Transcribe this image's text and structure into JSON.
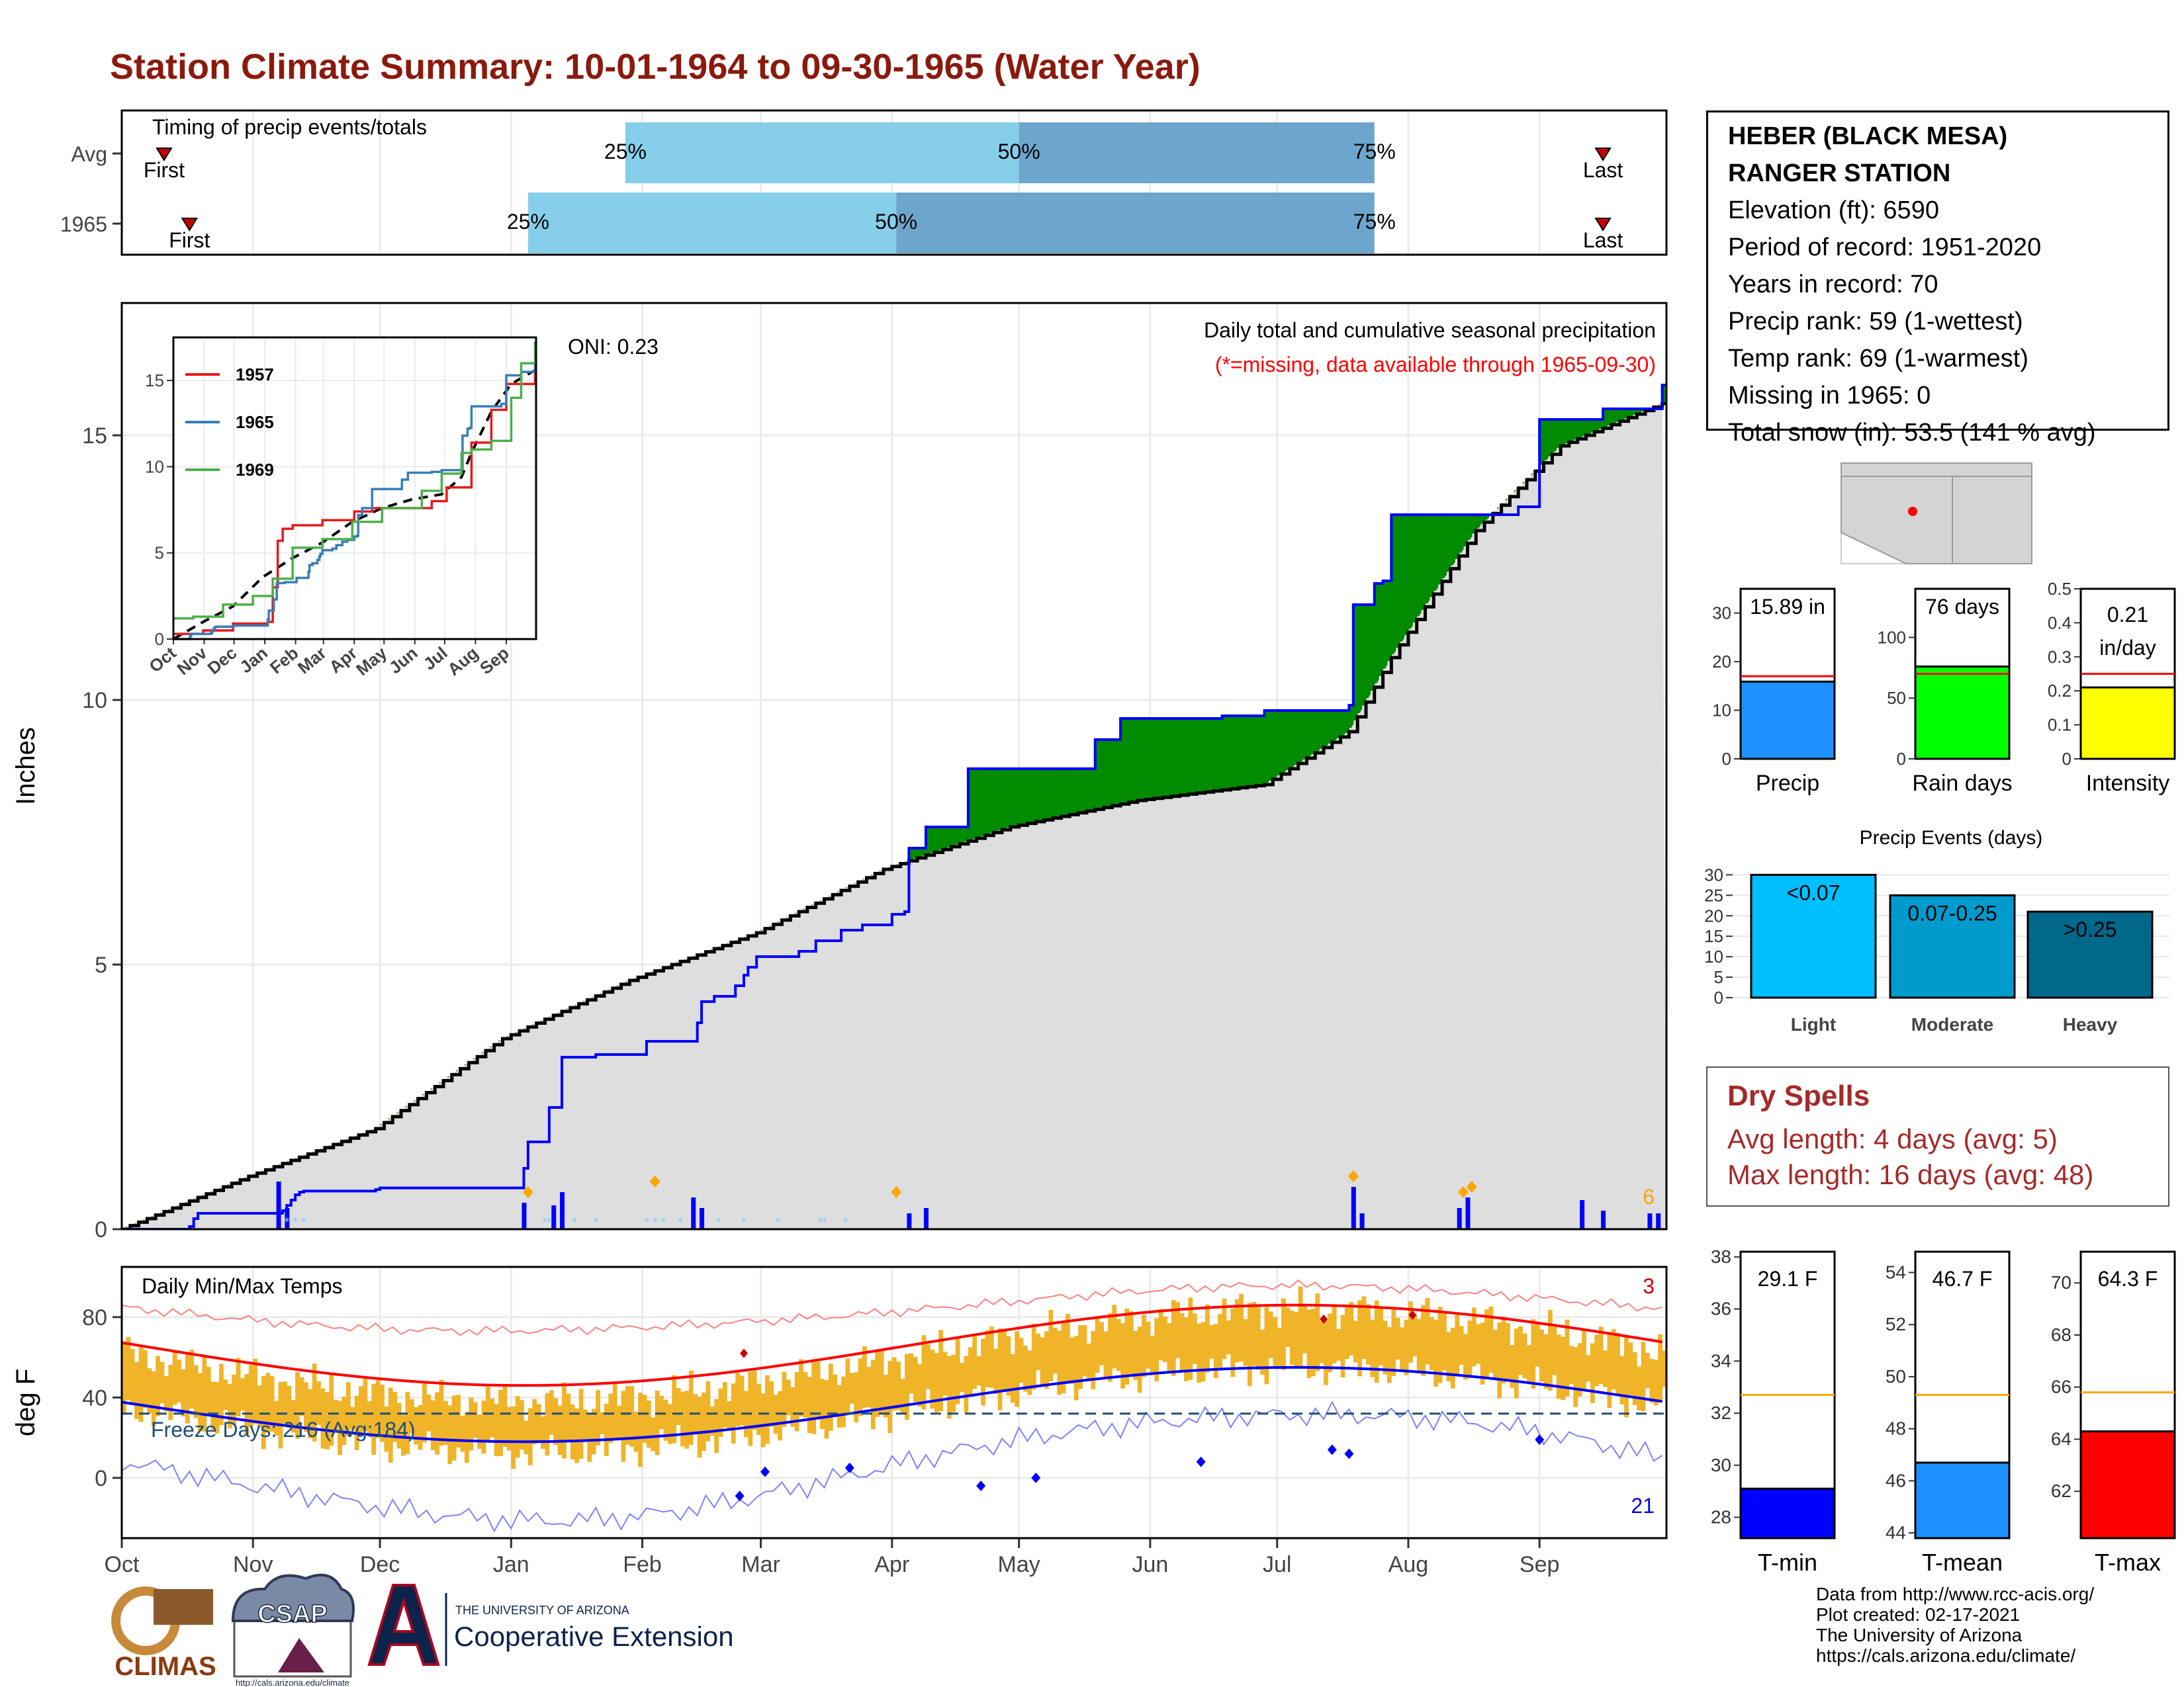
{
  "title": "Station Climate Summary: 10-01-1964 to 09-30-1965 (Water Year)",
  "colors": {
    "title": "#8b1a0e",
    "light_blue": "#87ceeb",
    "mid_blue": "#6ca6cd",
    "green": "#008b00",
    "brown": "#8b5a00",
    "normal_fill": "#dedede",
    "bar_blue": "#0000ff",
    "snow_blue": "#87cefa",
    "orange": "#ffa500",
    "temp_bar": "#f0b429",
    "red": "#ff0000",
    "blue": "#0000ff",
    "dry_red": "#a52a2a"
  },
  "timing": {
    "label": "Timing of precip events/totals",
    "rows": [
      {
        "name": "Avg",
        "first_day": 10,
        "p25": 119,
        "p50": 212,
        "p75": 296,
        "last_day": 350,
        "first_label": "First",
        "last_label": "Last",
        "p25_label": "25%",
        "p50_label": "50%",
        "p75_label": "75%"
      },
      {
        "name": "1965",
        "first_day": 16,
        "p25": 96,
        "p50": 183,
        "p75": 296,
        "last_day": 350,
        "first_label": "First",
        "last_label": "Last",
        "p25_label": "25%",
        "p50_label": "50%",
        "p75_label": "75%"
      }
    ]
  },
  "month_axis": {
    "labels": [
      "Oct",
      "Nov",
      "Dec",
      "Jan",
      "Feb",
      "Mar",
      "Apr",
      "May",
      "Jun",
      "Jul",
      "Aug",
      "Sep"
    ],
    "days": [
      0,
      31,
      61,
      92,
      123,
      151,
      182,
      212,
      243,
      273,
      304,
      335
    ],
    "ndays": 365
  },
  "precip": {
    "ylabel": "Inches",
    "yticks": [
      0,
      5,
      10,
      15
    ],
    "ylim": [
      0,
      17.5
    ],
    "oni": "ONI: 0.23",
    "heading": "Daily total and cumulative seasonal precipitation",
    "missing_note": "(*=missing, data available through 1965-09-30)",
    "corner_count": "6"
  },
  "inset": {
    "legend": [
      "1957",
      "1965",
      "1969"
    ],
    "colors": [
      "#e41a1c",
      "#377eb8",
      "#4daf4a"
    ],
    "yticks": [
      0,
      5,
      10,
      15
    ],
    "xlabels": [
      "Oct",
      "Nov",
      "Dec",
      "Jan",
      "Feb",
      "Mar",
      "Apr",
      "May",
      "Jun",
      "Jul",
      "Aug",
      "Sep"
    ]
  },
  "temps": {
    "ylabel": "deg F",
    "title": "Daily Min/Max Temps",
    "yticks": [
      0,
      40,
      80
    ],
    "ylim": [
      -30,
      105
    ],
    "freeze_label": "Freeze Days: 216 (Avg:184)",
    "corner_top": "3",
    "corner_bottom": "21"
  },
  "station": {
    "lines": [
      "HEBER (BLACK MESA)",
      "RANGER STATION",
      "Elevation (ft): 6590",
      "Period of record: 1951-2020",
      "Years in record: 70",
      "Precip rank: 59 (1-wettest)",
      "Temp rank: 69 (1-warmest)",
      "Missing in 1965: 0",
      "Total snow (in): 53.5 (141 % avg)"
    ]
  },
  "mini_bars": [
    {
      "label": "Precip",
      "value_text": "15.89 in",
      "value": 15.89,
      "avg": 17.0,
      "ymax": 35,
      "yticks": [
        0,
        10,
        20,
        30
      ],
      "color": "#1e90ff"
    },
    {
      "label": "Rain days",
      "value_text": "76 days",
      "value": 76,
      "avg": 70,
      "ymax": 140,
      "yticks": [
        0,
        50,
        100
      ],
      "color": "#00ff00"
    },
    {
      "label": "Intensity",
      "value_text": "0.21 in/day",
      "value": 0.21,
      "avg": 0.25,
      "ymax": 0.5,
      "yticks": [
        0.0,
        0.1,
        0.2,
        0.3,
        0.4,
        0.5
      ],
      "color": "#ffff00"
    }
  ],
  "precip_events": {
    "title": "Precip Events (days)",
    "categories": [
      "Light",
      "Moderate",
      "Heavy"
    ],
    "range_labels": [
      "<0.07",
      "0.07-0.25",
      ">0.25"
    ],
    "values": [
      30,
      25,
      21
    ],
    "yticks": [
      0,
      5,
      10,
      15,
      20,
      25,
      30
    ],
    "ymax": 32,
    "colors": [
      "#00bfff",
      "#009acd",
      "#00688b"
    ]
  },
  "dry_spells": {
    "title": "Dry Spells",
    "avg_line": "Avg length: 4 days (avg: 5)",
    "max_line": "Max length: 16 days (avg: 48)"
  },
  "temp_bars": [
    {
      "label": "T-min",
      "value_text": "29.1 F",
      "value": 29.1,
      "avg": 32.7,
      "ymin": 27.2,
      "ymax": 38.2,
      "yticks": [
        28,
        30,
        32,
        34,
        36,
        38
      ],
      "color": "#0000ff"
    },
    {
      "label": "T-mean",
      "value_text": "46.7 F",
      "value": 46.7,
      "avg": 49.3,
      "ymin": 43.8,
      "ymax": 54.8,
      "yticks": [
        44,
        46,
        48,
        50,
        52,
        54
      ],
      "color": "#1e90ff"
    },
    {
      "label": "T-max",
      "value_text": "64.3 F",
      "value": 64.3,
      "avg": 65.8,
      "ymin": 60.2,
      "ymax": 71.2,
      "yticks": [
        62,
        64,
        66,
        68,
        70
      ],
      "color": "#ff0000"
    }
  ],
  "credits": [
    "Data from http://www.rcc-acis.org/",
    "Plot created: 02-17-2021",
    "The University of Arizona",
    "https://cals.arizona.edu/climate/"
  ],
  "logos": {
    "climas": "CLIMAS",
    "csap": "CSAP",
    "csap_url": "http://cals.arizona.edu/climate",
    "ua_small": "THE UNIVERSITY OF ARIZONA",
    "ua_big": "Cooperative Extension"
  },
  "chart_data": {
    "type": "area",
    "title": "Daily total and cumulative seasonal precipitation",
    "xlabel": "",
    "ylabel": "Inches",
    "ylim": [
      0,
      17.5
    ],
    "x_unit": "day of water year",
    "series": [
      {
        "name": "cumulative_1965",
        "x": [
          0,
          16,
          17,
          18,
          38,
          39,
          40,
          41,
          42,
          43,
          60,
          61,
          95,
          96,
          100,
          101,
          104,
          105,
          112,
          123,
          124,
          135,
          136,
          137,
          140,
          145,
          147,
          148,
          150,
          160,
          164,
          170,
          175,
          182,
          185,
          186,
          190,
          200,
          230,
          236,
          260,
          270,
          290,
          291,
          296,
          298,
          300,
          330,
          335,
          350,
          364
        ],
        "values": [
          0,
          0.05,
          0.2,
          0.3,
          0.35,
          0.45,
          0.55,
          0.65,
          0.7,
          0.72,
          0.75,
          0.78,
          1.15,
          1.65,
          1.65,
          2.3,
          3.25,
          3.25,
          3.3,
          3.3,
          3.55,
          3.55,
          3.9,
          4.3,
          4.4,
          4.6,
          4.8,
          4.95,
          5.15,
          5.25,
          5.45,
          5.65,
          5.75,
          5.95,
          6.0,
          7.2,
          7.6,
          8.7,
          9.25,
          9.65,
          9.7,
          9.8,
          9.9,
          11.8,
          12.2,
          12.25,
          13.5,
          13.65,
          15.3,
          15.5,
          15.95
        ]
      },
      {
        "name": "cumulative_average",
        "x": [
          0,
          30,
          60,
          90,
          120,
          150,
          180,
          210,
          240,
          270,
          290,
          300,
          320,
          340,
          364
        ],
        "values": [
          0,
          1.0,
          1.9,
          3.6,
          4.7,
          5.6,
          6.8,
          7.6,
          8.1,
          8.4,
          9.4,
          10.8,
          13.2,
          14.8,
          15.6
        ]
      }
    ],
    "daily_totals": [
      {
        "x": 37,
        "value": 0.9
      },
      {
        "x": 39,
        "value": 0.4
      },
      {
        "x": 95,
        "value": 0.5
      },
      {
        "x": 102,
        "value": 0.45
      },
      {
        "x": 104,
        "value": 0.7
      },
      {
        "x": 135,
        "value": 0.6
      },
      {
        "x": 137,
        "value": 0.4
      },
      {
        "x": 186,
        "value": 0.3
      },
      {
        "x": 190,
        "value": 0.4
      },
      {
        "x": 291,
        "value": 0.8
      },
      {
        "x": 293,
        "value": 0.3
      },
      {
        "x": 316,
        "value": 0.4
      },
      {
        "x": 318,
        "value": 0.6
      },
      {
        "x": 345,
        "value": 0.55
      },
      {
        "x": 350,
        "value": 0.35
      },
      {
        "x": 361,
        "value": 0.3
      },
      {
        "x": 363,
        "value": 0.3
      }
    ],
    "extreme_markers_x": [
      96,
      126,
      183,
      291,
      317,
      319
    ]
  }
}
